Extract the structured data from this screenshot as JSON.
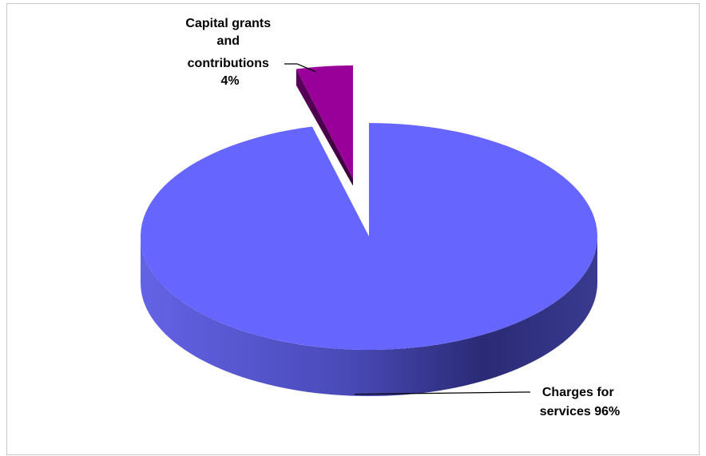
{
  "chart_data": {
    "type": "pie",
    "style": "3d-exploded",
    "slices": [
      {
        "label_lines": [
          "Charges for",
          "services 96%"
        ],
        "value": 96,
        "color": "#6666ff"
      },
      {
        "label_lines": [
          "Capital grants",
          "and",
          "contributions",
          "4%"
        ],
        "value": 4,
        "color": "#990099"
      }
    ],
    "legend": "none",
    "grid": false
  }
}
